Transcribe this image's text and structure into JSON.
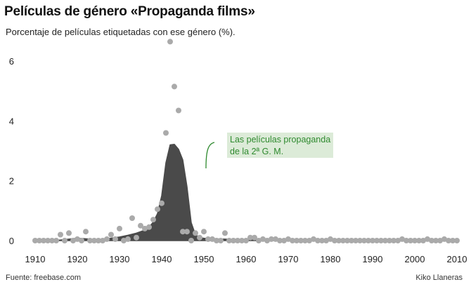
{
  "title": "Películas de género «Propaganda films»",
  "subtitle": "Porcentaje de películas etiquetadas con ese género (%).",
  "source": "Fuente: freebase.com",
  "credit": "Kiko Llaneras",
  "annotation": {
    "line1": "Las películas propaganda",
    "line2": "de la 2ª G. M."
  },
  "colors": {
    "area": "#4a4a4a",
    "points": "#aaaaaa",
    "annotation_text": "#2f8a2f",
    "annotation_bg": "#dcebd8"
  },
  "chart_data": {
    "type": "area",
    "title": "Películas de género «Propaganda films»",
    "ylabel": "Porcentaje de películas etiquetadas con ese género (%).",
    "xlim": [
      1908,
      2011
    ],
    "ylim": [
      0,
      6.8
    ],
    "x_ticks": [
      1910,
      1920,
      1930,
      1940,
      1950,
      1960,
      1970,
      1980,
      1990,
      2000,
      2010
    ],
    "y_ticks": [
      0,
      2,
      4,
      6
    ],
    "grid": false,
    "series": [
      {
        "kind": "smoothed-area",
        "x": [
          1913,
          1916,
          1918,
          1920,
          1922,
          1924,
          1926,
          1928,
          1930,
          1932,
          1934,
          1936,
          1937,
          1938,
          1939,
          1940,
          1941,
          1942,
          1943,
          1944,
          1945,
          1946,
          1947,
          1948,
          1949,
          1950,
          1952,
          1955,
          1958,
          1962,
          1970,
          1980,
          1990,
          2000,
          2009
        ],
        "y": [
          0.0,
          0.02,
          0.05,
          0.08,
          0.06,
          0.04,
          0.05,
          0.08,
          0.12,
          0.18,
          0.25,
          0.35,
          0.45,
          0.62,
          0.9,
          1.5,
          2.6,
          3.2,
          3.22,
          3.05,
          2.7,
          1.8,
          0.6,
          0.2,
          0.1,
          0.08,
          0.06,
          0.05,
          0.03,
          0.03,
          0.02,
          0.02,
          0.02,
          0.02,
          0.0
        ]
      },
      {
        "kind": "scatter",
        "x": [
          1910,
          1911,
          1912,
          1913,
          1914,
          1915,
          1916,
          1917,
          1918,
          1919,
          1920,
          1921,
          1922,
          1923,
          1924,
          1925,
          1926,
          1927,
          1928,
          1929,
          1930,
          1931,
          1932,
          1933,
          1934,
          1935,
          1936,
          1937,
          1938,
          1939,
          1940,
          1941,
          1942,
          1943,
          1944,
          1945,
          1946,
          1947,
          1948,
          1949,
          1950,
          1951,
          1952,
          1953,
          1954,
          1955,
          1956,
          1957,
          1958,
          1959,
          1960,
          1961,
          1962,
          1963,
          1964,
          1965,
          1966,
          1967,
          1968,
          1969,
          1970,
          1971,
          1972,
          1973,
          1974,
          1975,
          1976,
          1977,
          1978,
          1979,
          1980,
          1981,
          1982,
          1983,
          1984,
          1985,
          1986,
          1987,
          1988,
          1989,
          1990,
          1991,
          1992,
          1993,
          1994,
          1995,
          1996,
          1997,
          1998,
          1999,
          2000,
          2001,
          2002,
          2003,
          2004,
          2005,
          2006,
          2007,
          2008,
          2009,
          2010
        ],
        "y": [
          0,
          0,
          0,
          0,
          0,
          0,
          0.2,
          0,
          0.25,
          0,
          0.05,
          0,
          0.3,
          0,
          0,
          0,
          0,
          0.05,
          0.2,
          0.05,
          0.4,
          0,
          0.05,
          0.75,
          0.1,
          0.5,
          0.4,
          0.45,
          0.7,
          1.05,
          1.25,
          3.6,
          6.65,
          5.15,
          4.35,
          0.3,
          0.3,
          0,
          0.25,
          0.1,
          0.3,
          0.05,
          0.05,
          0,
          0,
          0.25,
          0,
          0,
          0,
          0,
          0,
          0.1,
          0.1,
          0,
          0.05,
          0,
          0.05,
          0.05,
          0,
          0,
          0.05,
          0,
          0,
          0,
          0,
          0,
          0.05,
          0,
          0,
          0,
          0.05,
          0,
          0,
          0,
          0,
          0,
          0,
          0,
          0,
          0,
          0,
          0,
          0,
          0,
          0,
          0,
          0,
          0.05,
          0,
          0,
          0,
          0,
          0,
          0.05,
          0,
          0,
          0,
          0.05,
          0,
          0,
          0
        ]
      }
    ]
  }
}
